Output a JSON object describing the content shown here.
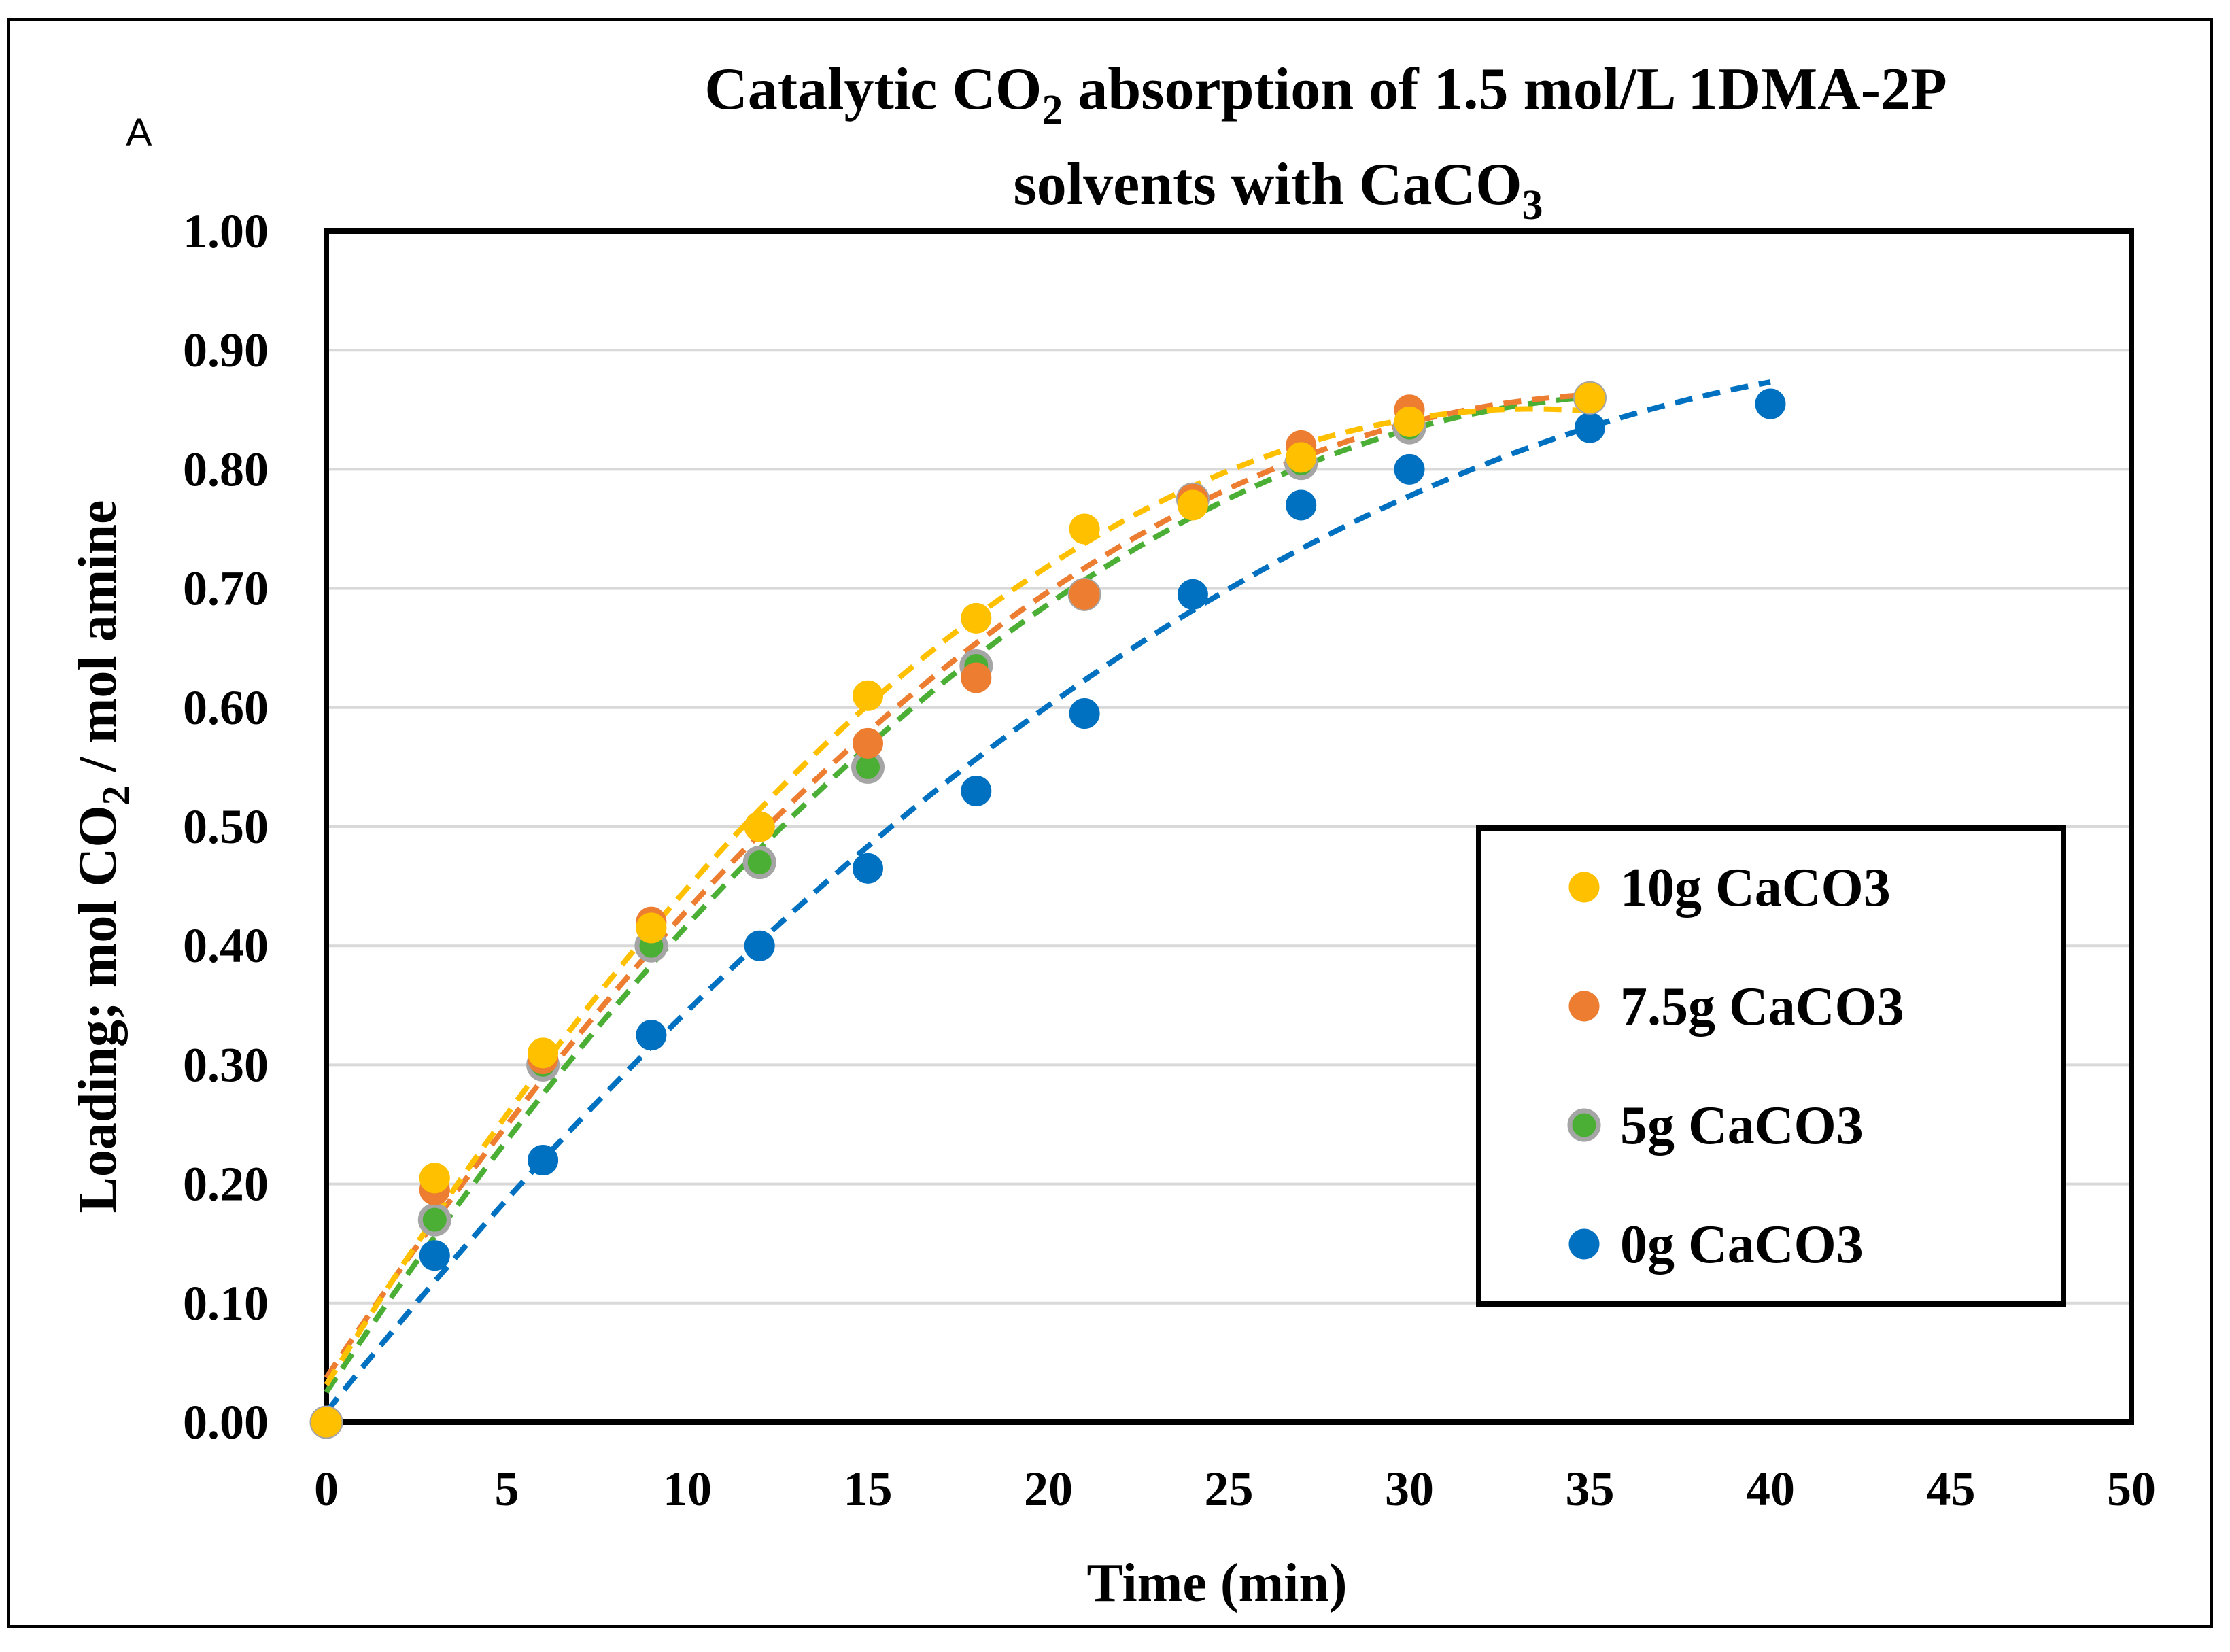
{
  "panel_letter": "A",
  "title": {
    "line1_pre": "Catalytic CO",
    "line1_sub": "2",
    "line1_post": " absorption of 1.5 mol/L 1DMA-2P",
    "line2_pre": "solvents with CaCO",
    "line2_sub": "3"
  },
  "axes": {
    "x_label": "Time (min)",
    "y_label_pre": "Loading; mol CO",
    "y_label_sub": "2",
    "y_label_post": " / mol amine"
  },
  "colors": {
    "series_10g": "#FFC000",
    "series_7_5g": "#ED7D31",
    "series_5g_fill": "#4CAF35",
    "series_5g_stroke": "#A5A5A5",
    "series_0g": "#0070C0",
    "gridline": "#D9D9D9"
  },
  "chart_data": {
    "type": "scatter",
    "title": "Catalytic CO2 absorption of 1.5 mol/L 1DMA-2P solvents with CaCO3",
    "xlabel": "Time (min)",
    "ylabel": "Loading; mol CO2 / mol amine",
    "xlim": [
      0,
      50
    ],
    "ylim": [
      0,
      1.0
    ],
    "x_ticks": [
      "0",
      "5",
      "10",
      "15",
      "20",
      "25",
      "30",
      "35",
      "40",
      "45",
      "50"
    ],
    "y_ticks": [
      "0.00",
      "0.10",
      "0.20",
      "0.30",
      "0.40",
      "0.50",
      "0.60",
      "0.70",
      "0.80",
      "0.90",
      "1.00"
    ],
    "grid": "horizontal",
    "legend_position": "right",
    "trendlines": "dashed polynomial fit per series",
    "series": [
      {
        "name": "10g CaCO3",
        "x": [
          0,
          3,
          6,
          9,
          12,
          15,
          18,
          21,
          24,
          27,
          30,
          35
        ],
        "y": [
          0,
          0.205,
          0.31,
          0.415,
          0.5,
          0.61,
          0.675,
          0.75,
          0.77,
          0.81,
          0.84,
          0.86
        ]
      },
      {
        "name": "7.5g CaCO3",
        "x": [
          0,
          3,
          6,
          9,
          12,
          15,
          18,
          21,
          24,
          27,
          30,
          35
        ],
        "y": [
          0,
          0.195,
          0.305,
          0.42,
          0.5,
          0.57,
          0.625,
          0.695,
          0.775,
          0.82,
          0.85,
          0.86
        ]
      },
      {
        "name": "5g CaCO3",
        "x": [
          0,
          3,
          6,
          9,
          12,
          15,
          18,
          21,
          24,
          27,
          30,
          35
        ],
        "y": [
          0,
          0.17,
          0.3,
          0.4,
          0.47,
          0.55,
          0.635,
          0.695,
          0.775,
          0.805,
          0.835,
          0.86
        ]
      },
      {
        "name": "0g CaCO3",
        "x": [
          0,
          3,
          6,
          9,
          12,
          15,
          18,
          21,
          24,
          27,
          30,
          35,
          40
        ],
        "y": [
          0,
          0.14,
          0.22,
          0.325,
          0.4,
          0.465,
          0.53,
          0.595,
          0.695,
          0.77,
          0.8,
          0.835,
          0.855
        ]
      }
    ]
  }
}
